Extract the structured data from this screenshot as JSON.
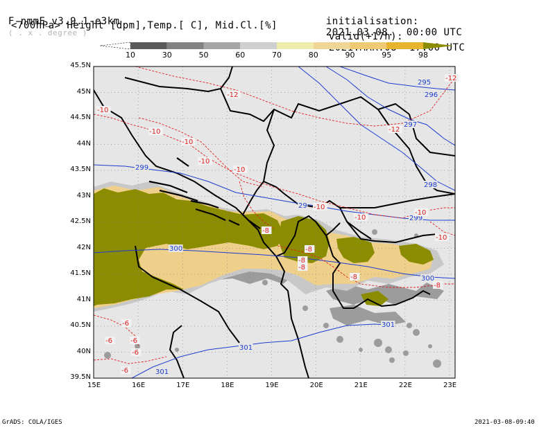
{
  "header": {
    "model_prefix": "F-nmmE_v3.9.1-e3km",
    "degree_note": "( . x . degree )",
    "init_label": "initialisation:",
    "init_value": "2021.03.08.  00:00 UTC",
    "field_desc": "<700hPa> Height [dpm],Temp.[ C], Mid.Cl.[%]",
    "valid_label": "valid(+17h):",
    "valid_value": "2021.MAR.08  17:00 UTC"
  },
  "legend": {
    "ticks": [
      "10",
      "30",
      "50",
      "60",
      "70",
      "80",
      "90",
      "95",
      "98"
    ],
    "colors": [
      "#ffffff",
      "#5a5a5a",
      "#828282",
      "#a6a6a6",
      "#cfcfcf",
      "#f0ecac",
      "#efd596",
      "#efca72",
      "#e8b42e",
      "#8c8c00"
    ]
  },
  "axes": {
    "lat_labels": [
      "45.5N",
      "45N",
      "44.5N",
      "44N",
      "43.5N",
      "43N",
      "42.5N",
      "42N",
      "41.5N",
      "41N",
      "40.5N",
      "40N",
      "39.5N"
    ],
    "lon_labels": [
      "15E",
      "16E",
      "17E",
      "18E",
      "19E",
      "20E",
      "21E",
      "22E",
      "23E"
    ]
  },
  "height_labels": [
    "295",
    "296",
    "297",
    "298",
    "299",
    "299",
    "29",
    "300",
    "300",
    "301",
    "301",
    "301"
  ],
  "temp_labels": [
    "-12",
    "-12",
    "-12",
    "-10",
    "-10",
    "-10",
    "-10",
    "-10",
    "-10",
    "-10",
    "-10",
    "-10",
    "-8",
    "-8",
    "-8",
    "-8",
    "-8",
    "-8",
    "-6",
    "-6",
    "-6",
    "-6",
    "-6"
  ],
  "colors": {
    "map_bg": "#e6e6e6",
    "height_contour": "#1c3cd0",
    "temp_contour": "#e02020",
    "border": "#000000",
    "cloud_dense": "#8c8c00"
  },
  "footer": {
    "left": "GrADS: COLA/IGES",
    "right": "2021-03-08-09:40"
  }
}
